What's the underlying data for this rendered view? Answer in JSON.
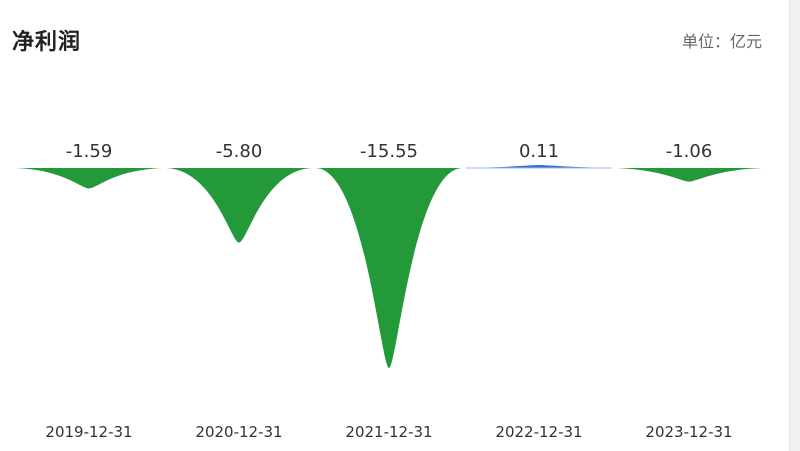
{
  "header": {
    "title": "净利润",
    "unit_label": "单位：亿元"
  },
  "chart_data": {
    "type": "area",
    "categories": [
      "2019-12-31",
      "2020-12-31",
      "2021-12-31",
      "2022-12-31",
      "2023-12-31"
    ],
    "values": [
      -1.59,
      -5.8,
      -15.55,
      0.11,
      -1.06
    ],
    "value_labels": [
      "-1.59",
      "-5.80",
      "-15.55",
      "0.11",
      "-1.06"
    ],
    "ylim": [
      -15.55,
      0.11
    ],
    "colors": {
      "negative": "#23993a",
      "positive": "#3b6fd6"
    }
  }
}
